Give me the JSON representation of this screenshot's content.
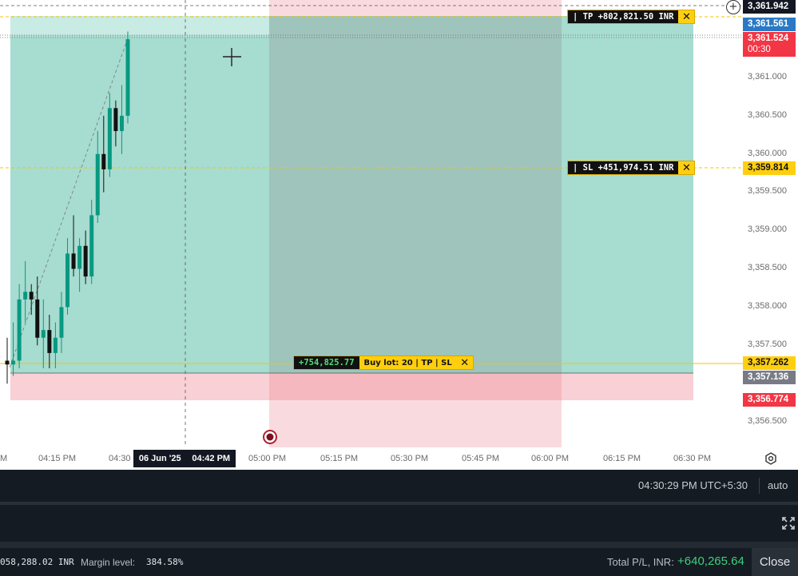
{
  "price_axis": {
    "ticks": [
      "3,361.000",
      "3,360.500",
      "3,360.000",
      "3,359.500",
      "3,359.000",
      "3,358.500",
      "3,358.000",
      "3,357.500",
      "3,356.500"
    ],
    "labels": {
      "top": "3,361.942",
      "ask": "3,361.561",
      "bid": "3,361.524",
      "countdown": "00:30",
      "sl": "3,359.814",
      "entry": "3,357.262",
      "current": "3,357.136",
      "red": "3,356.774"
    },
    "colors": {
      "top": "#131722",
      "ask": "#2979c4",
      "bid": "#f23645",
      "sl": "#ffcf0f",
      "entry": "#ffcf0f",
      "current": "#787b86",
      "red": "#f23645"
    }
  },
  "time_axis": {
    "ticks": [
      "M",
      "04:15 PM",
      "04:30",
      "05:00 PM",
      "05:15 PM",
      "05:30 PM",
      "05:45 PM",
      "06:00 PM",
      "06:15 PM",
      "06:30 PM"
    ],
    "cursor_date": "06 Jun '25",
    "cursor_time": "04:42 PM"
  },
  "orders": {
    "tp": {
      "text": "| TP +802,821.50 INR",
      "close": "✕"
    },
    "sl": {
      "text": "| SL +451,974.51 INR",
      "close": "✕"
    },
    "position": {
      "pl": "+754,825.77",
      "text": "Buy lot: 20 | TP | SL",
      "close": "✕"
    }
  },
  "status_bar": {
    "clock": "04:30:29 PM UTC+5:30",
    "scale": "auto"
  },
  "footer": {
    "balance": "058,288.02 INR",
    "margin_label": "Margin level:",
    "margin_value": "384.58%",
    "total_label": "Total P/L, INR:",
    "total_value": "+640,265.64",
    "close_label": "Close"
  },
  "candles": [
    {
      "o": 3357.3,
      "h": 3357.6,
      "l": 3357.0,
      "c": 3357.25
    },
    {
      "o": 3357.25,
      "h": 3357.8,
      "l": 3357.1,
      "c": 3357.3
    },
    {
      "o": 3357.3,
      "h": 3358.3,
      "l": 3357.2,
      "c": 3358.1
    },
    {
      "o": 3358.1,
      "h": 3358.6,
      "l": 3357.8,
      "c": 3358.2
    },
    {
      "o": 3358.2,
      "h": 3358.3,
      "l": 3357.9,
      "c": 3358.1
    },
    {
      "o": 3358.1,
      "h": 3358.4,
      "l": 3357.5,
      "c": 3357.6
    },
    {
      "o": 3357.6,
      "h": 3358.1,
      "l": 3357.2,
      "c": 3357.7
    },
    {
      "o": 3357.7,
      "h": 3357.9,
      "l": 3357.2,
      "c": 3357.4
    },
    {
      "o": 3357.4,
      "h": 3357.8,
      "l": 3357.2,
      "c": 3357.6
    },
    {
      "o": 3357.6,
      "h": 3358.2,
      "l": 3357.4,
      "c": 3358.0
    },
    {
      "o": 3358.0,
      "h": 3358.9,
      "l": 3357.9,
      "c": 3358.7
    },
    {
      "o": 3358.7,
      "h": 3359.2,
      "l": 3358.4,
      "c": 3358.5
    },
    {
      "o": 3358.5,
      "h": 3358.9,
      "l": 3358.2,
      "c": 3358.8
    },
    {
      "o": 3358.8,
      "h": 3359.0,
      "l": 3358.3,
      "c": 3358.4
    },
    {
      "o": 3358.4,
      "h": 3359.4,
      "l": 3358.3,
      "c": 3359.2
    },
    {
      "o": 3359.2,
      "h": 3360.3,
      "l": 3359.1,
      "c": 3360.0
    },
    {
      "o": 3360.0,
      "h": 3360.5,
      "l": 3359.5,
      "c": 3359.8
    },
    {
      "o": 3359.8,
      "h": 3360.8,
      "l": 3359.7,
      "c": 3360.6
    },
    {
      "o": 3360.6,
      "h": 3360.7,
      "l": 3360.1,
      "c": 3360.3
    },
    {
      "o": 3360.3,
      "h": 3360.9,
      "l": 3360.0,
      "c": 3360.5
    },
    {
      "o": 3360.5,
      "h": 3361.6,
      "l": 3360.4,
      "c": 3361.5
    }
  ]
}
